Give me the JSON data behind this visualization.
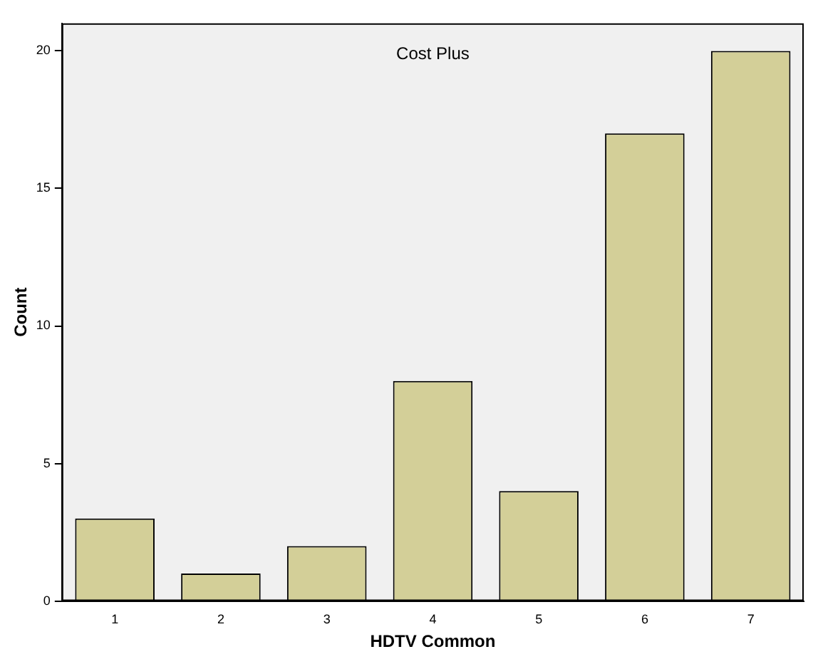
{
  "chart_data": {
    "type": "bar",
    "title": "Cost Plus",
    "xlabel": "HDTV Common",
    "ylabel": "Count",
    "categories": [
      "1",
      "2",
      "3",
      "4",
      "5",
      "6",
      "7"
    ],
    "values": [
      3,
      1,
      2,
      8,
      4,
      17,
      20
    ],
    "color": "#d3cf98",
    "ylim": [
      0,
      21
    ],
    "yticks": [
      0,
      5,
      10,
      15,
      20
    ],
    "grid": false,
    "legend": false
  }
}
